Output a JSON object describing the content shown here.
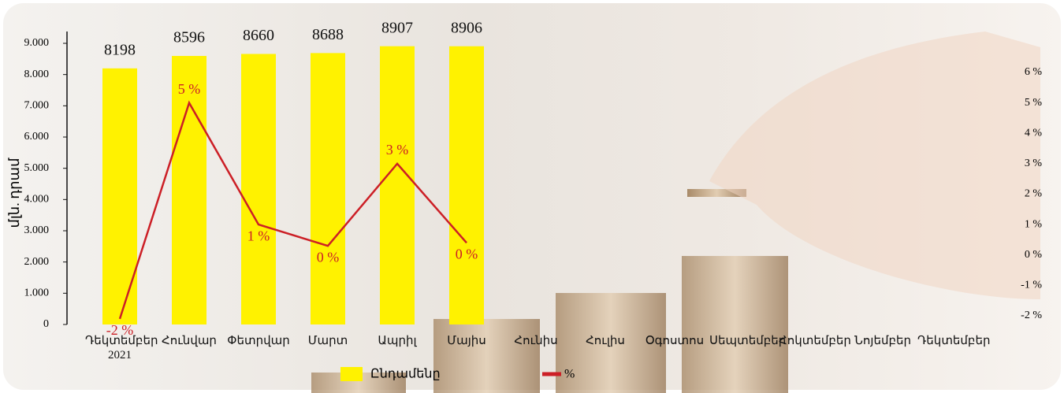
{
  "chart_data": {
    "type": "bar-line",
    "ylabel": "մլն. դրամ",
    "categories": [
      "Դեկտեմբեր 2021",
      "Հունվար",
      "Փետրվար",
      "Մարտ",
      "Ապրիլ",
      "Մայիս",
      "Հունիս",
      "Հուլիս",
      "Օգոստոս",
      "Սեպտեմբեր",
      "Հոկտեմբեր",
      "Նոյեմբեր",
      "Դեկտեմբեր"
    ],
    "series": [
      {
        "name": "Ընդամենը",
        "type": "bar",
        "color": "#fff200",
        "values": [
          8198,
          8596,
          8660,
          8688,
          8907,
          8906,
          null,
          null,
          null,
          null,
          null,
          null,
          null
        ]
      },
      {
        "name": "%",
        "type": "line",
        "axis": "y2",
        "color": "#cc1f26",
        "values": [
          -2.1,
          5,
          1,
          0.3,
          3,
          0.4,
          null,
          null,
          null,
          null,
          null,
          null,
          null
        ],
        "value_labels": [
          "-2 %",
          "5 %",
          "1 %",
          "0 %",
          "3 %",
          "0 %",
          null,
          null,
          null,
          null,
          null,
          null,
          null
        ]
      }
    ],
    "ylim": [
      0,
      9000
    ],
    "yticks": [
      0,
      {
        "value": 1000,
        "label": "1.000"
      },
      {
        "value": 2000,
        "label": "2.000"
      },
      {
        "value": 3000,
        "label": "3.000"
      },
      {
        "value": 4000,
        "label": "4.000"
      },
      {
        "value": 5000,
        "label": "5.000"
      },
      {
        "value": 6000,
        "label": "6.000"
      },
      {
        "value": 7000,
        "label": "7.000"
      },
      {
        "value": 8000,
        "label": "8.000"
      },
      {
        "value": 9000,
        "label": "9.000"
      }
    ],
    "y2lim": [
      -2,
      6
    ],
    "y2ticks": [
      {
        "value": -2,
        "label": "-2 %"
      },
      {
        "value": -1,
        "label": "-1 %"
      },
      {
        "value": 0,
        "label": "0 %"
      },
      {
        "value": 1,
        "label": "1 %"
      },
      {
        "value": 2,
        "label": "2 %"
      },
      {
        "value": 3,
        "label": "3 %"
      },
      {
        "value": 4,
        "label": "4 %"
      },
      {
        "value": 5,
        "label": "5 %"
      },
      {
        "value": 6,
        "label": "6 %"
      }
    ]
  }
}
